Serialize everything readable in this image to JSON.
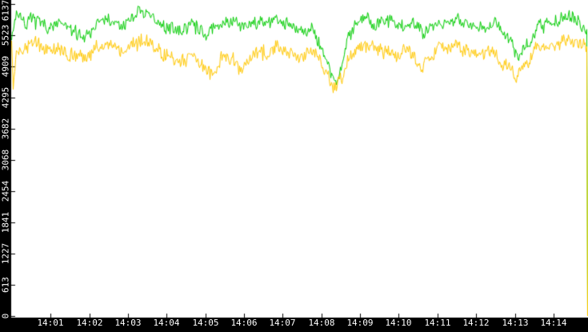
{
  "chart_data": {
    "type": "line",
    "title": "",
    "grid": false,
    "legend": false,
    "x_axis": {
      "label": "",
      "tick_labels": [
        "14:01",
        "14:02",
        "14:03",
        "14:04",
        "14:05",
        "14:06",
        "14:07",
        "14:08",
        "14:09",
        "14:10",
        "14:11",
        "14:12",
        "14:13",
        "14:14"
      ],
      "range": [
        "14:00",
        "14:15"
      ]
    },
    "y_axis": {
      "label": "",
      "tick_labels": [
        "0",
        "613",
        "1227",
        "1841",
        "2454",
        "3068",
        "3682",
        "4295",
        "4909",
        "5523",
        "6137"
      ],
      "tick_values": [
        0,
        613,
        1227,
        1841,
        2454,
        3068,
        3682,
        4295,
        4909,
        5523,
        6137
      ],
      "min": 0,
      "max": 6137
    },
    "colors": {
      "plot_bg": "#ffffff",
      "axis_bg": "#000000",
      "tick": "#000000",
      "label_text": "#ffffff",
      "green": "#00cc00",
      "yellow": "#ffc800"
    },
    "ends_drop_to_zero": true,
    "series": [
      {
        "name": "green-line",
        "color_key": "green",
        "seed": 7,
        "noise": 100,
        "wander": 120,
        "keyframes": [
          [
            0,
            5560
          ],
          [
            0.13,
            5980
          ],
          [
            0.32,
            5745
          ],
          [
            0.63,
            5820
          ],
          [
            0.94,
            5670
          ],
          [
            1.25,
            5745
          ],
          [
            1.56,
            5590
          ],
          [
            1.87,
            5510
          ],
          [
            2.18,
            5745
          ],
          [
            2.49,
            5820
          ],
          [
            2.8,
            5670
          ],
          [
            3.11,
            5900
          ],
          [
            3.42,
            5980
          ],
          [
            3.73,
            5745
          ],
          [
            4.04,
            5670
          ],
          [
            4.35,
            5590
          ],
          [
            4.66,
            5775
          ],
          [
            4.97,
            5560
          ],
          [
            5.28,
            5670
          ],
          [
            5.59,
            5820
          ],
          [
            5.9,
            5670
          ],
          [
            6.21,
            5745
          ],
          [
            6.52,
            5775
          ],
          [
            6.83,
            5820
          ],
          [
            7.14,
            5745
          ],
          [
            7.45,
            5590
          ],
          [
            7.76,
            5670
          ],
          [
            7.97,
            5350
          ],
          [
            8.18,
            4960
          ],
          [
            8.34,
            4640
          ],
          [
            8.49,
            4800
          ],
          [
            8.63,
            5350
          ],
          [
            8.8,
            5670
          ],
          [
            9.11,
            5900
          ],
          [
            9.42,
            5745
          ],
          [
            9.73,
            5820
          ],
          [
            10.04,
            5670
          ],
          [
            10.35,
            5745
          ],
          [
            10.66,
            5590
          ],
          [
            10.97,
            5820
          ],
          [
            11.28,
            5745
          ],
          [
            11.59,
            5820
          ],
          [
            11.9,
            5745
          ],
          [
            12.21,
            5670
          ],
          [
            12.52,
            5820
          ],
          [
            12.83,
            5430
          ],
          [
            13.1,
            5120
          ],
          [
            13.35,
            5350
          ],
          [
            13.6,
            5670
          ],
          [
            13.86,
            5745
          ],
          [
            14.17,
            5820
          ],
          [
            14.48,
            5900
          ],
          [
            14.69,
            5670
          ],
          [
            14.88,
            5620
          ]
        ]
      },
      {
        "name": "yellow-line",
        "color_key": "yellow",
        "seed": 13,
        "noise": 110,
        "wander": 130,
        "keyframes": [
          [
            0,
            5430
          ],
          [
            0.03,
            4450
          ],
          [
            0.12,
            5300
          ],
          [
            0.32,
            5275
          ],
          [
            0.63,
            5350
          ],
          [
            0.94,
            5195
          ],
          [
            1.25,
            5275
          ],
          [
            1.56,
            5115
          ],
          [
            1.87,
            5085
          ],
          [
            2.18,
            5275
          ],
          [
            2.49,
            5350
          ],
          [
            2.8,
            5195
          ],
          [
            3.11,
            5350
          ],
          [
            3.42,
            5430
          ],
          [
            3.73,
            5275
          ],
          [
            4.04,
            5115
          ],
          [
            4.35,
            4960
          ],
          [
            4.66,
            5115
          ],
          [
            4.97,
            4880
          ],
          [
            5.18,
            4720
          ],
          [
            5.45,
            5115
          ],
          [
            5.7,
            5040
          ],
          [
            5.9,
            4830
          ],
          [
            6.21,
            5115
          ],
          [
            6.52,
            5195
          ],
          [
            6.83,
            5275
          ],
          [
            7.14,
            5195
          ],
          [
            7.45,
            5040
          ],
          [
            7.76,
            5275
          ],
          [
            7.97,
            5040
          ],
          [
            8.18,
            4640
          ],
          [
            8.38,
            4490
          ],
          [
            8.55,
            4720
          ],
          [
            8.69,
            5040
          ],
          [
            9.0,
            5275
          ],
          [
            9.31,
            5350
          ],
          [
            9.62,
            5195
          ],
          [
            9.93,
            5115
          ],
          [
            10.24,
            5275
          ],
          [
            10.55,
            4880
          ],
          [
            10.86,
            5195
          ],
          [
            11.17,
            5275
          ],
          [
            11.48,
            5350
          ],
          [
            11.79,
            5195
          ],
          [
            12.1,
            5115
          ],
          [
            12.41,
            5195
          ],
          [
            12.72,
            4960
          ],
          [
            13.03,
            4720
          ],
          [
            13.24,
            4880
          ],
          [
            13.51,
            5195
          ],
          [
            13.76,
            5275
          ],
          [
            14.07,
            5350
          ],
          [
            14.38,
            5430
          ],
          [
            14.63,
            5275
          ],
          [
            14.88,
            5350
          ]
        ]
      }
    ]
  }
}
